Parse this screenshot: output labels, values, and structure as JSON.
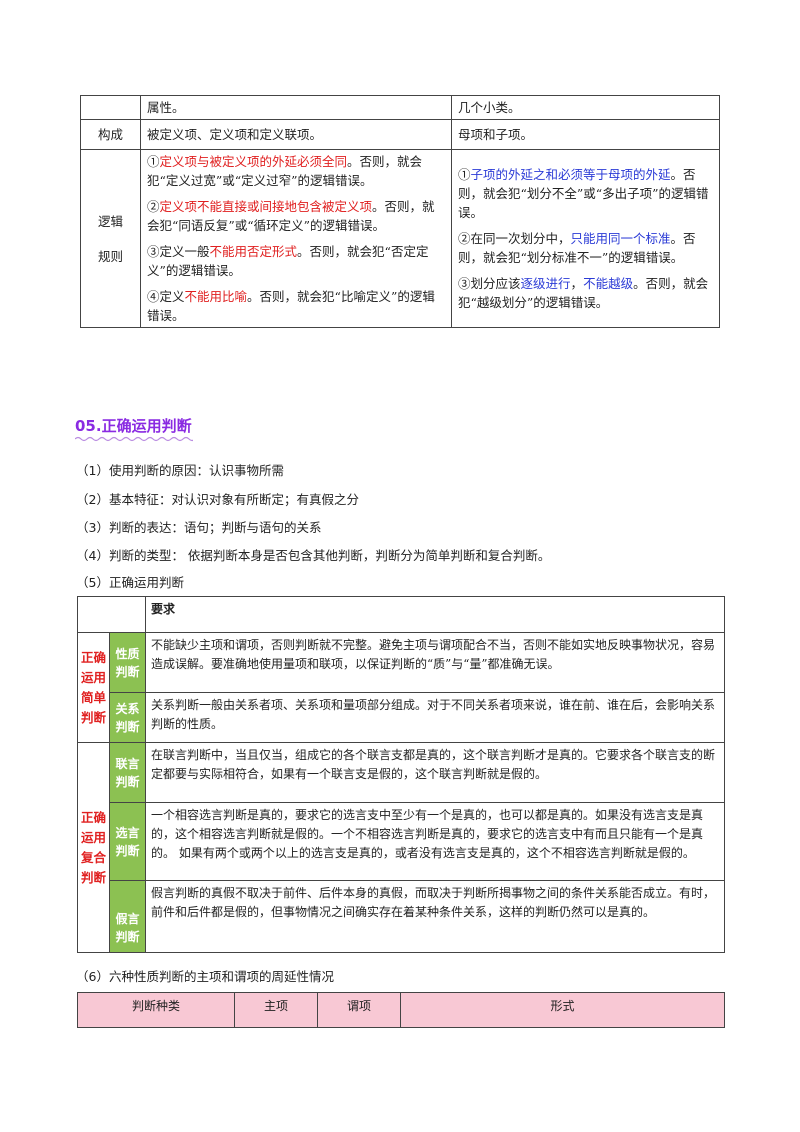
{
  "table1": {
    "row_attr": {
      "c1": "属性。",
      "c2": "几个小类。"
    },
    "row_compose": {
      "label": "构成",
      "c1": "被定义项、定义项和定义联项。",
      "c2": "母项和子项。"
    },
    "row_rules": {
      "label_line1": "逻辑",
      "label_line2": "规则",
      "def_rules": [
        {
          "num": "①",
          "em": "定义项与被定义项的外延必须全同",
          "rest": "。否则，就会犯“定义过宽”或“定义过窄”的逻辑错误。"
        },
        {
          "num": "②",
          "em": "定义项不能直接或间接地包含被定义项",
          "rest": "。否则，就会犯“同语反复”或“循环定义”的逻辑错误。"
        },
        {
          "num": "③",
          "pre": "定义一般",
          "em": "不能用否定形式",
          "rest": "。否则，就会犯“否定定义”的逻辑错误。"
        },
        {
          "num": "④",
          "pre": "定义",
          "em": "不能用比喻",
          "rest": "。否则，就会犯“比喻定义”的逻辑错误。"
        }
      ],
      "div_rules": [
        {
          "num": "①",
          "em": "子项的外延之和必须等于母项的外延",
          "rest": "。否则，就会犯“划分不全”或“多出子项”的逻辑错误。"
        },
        {
          "num": "②",
          "pre": "在同一次划分中，",
          "em": "只能用同一个标准",
          "rest": "。否则，就会犯“划分标准不一”的逻辑错误。"
        },
        {
          "num": "③",
          "pre": "划分应该",
          "em": "逐级进行",
          "mid": "，",
          "em2": "不能越级",
          "rest": "。否则，就会犯“越级划分”的逻辑错误。"
        }
      ]
    }
  },
  "heading": "05.正确运用判断",
  "paragraphs": [
    "（1）使用判断的原因：认识事物所需",
    "（2）基本特征：对认识对象有所断定；有真假之分",
    "（3）判断的表达：语句；判断与语句的关系",
    "（4）判断的类型： 依据判断本身是否包含其他判断，判断分为简单判断和复合判断。",
    "（5）正确运用判断"
  ],
  "table2": {
    "header": "要求",
    "group_simple": "正确运用简单判断",
    "group_compound": "正确运用复合判断",
    "rows": [
      {
        "label": "性质判断",
        "text": "不能缺少主项和谓项，否则判断就不完整。避免主项与谓项配合不当，否则不能如实地反映事物状况，容易造成误解。要准确地使用量项和联项，以保证判断的“质”与“量”都准确无误。"
      },
      {
        "label": "关系判断",
        "text": "关系判断一般由关系者项、关系项和量项部分组成。对于不同关系者项来说，谁在前、谁在后，会影响关系判断的性质。"
      },
      {
        "label": "联言判断",
        "text": "在联言判断中，当且仅当，组成它的各个联言支都是真的，这个联言判断才是真的。它要求各个联言支的断定都要与实际相符合，如果有一个联言支是假的，这个联言判断就是假的。"
      },
      {
        "label": "选言判断",
        "text": "一个相容选言判断是真的，要求它的选言支中至少有一个是真的，也可以都是真的。如果没有选言支是真的，这个相容选言判断就是假的。一个不相容选言判断是真的，要求它的选言支中有而且只能有一个是真的。 如果有两个或两个以上的选言支是真的，或者没有选言支是真的，这个不相容选言判断就是假的。"
      },
      {
        "label": "假言判断",
        "text": "假言判断的真假不取决于前件、后件本身的真假，而取决于判断所揭事物之间的条件关系能否成立。有时，前件和后件都是假的，但事物情况之间确实存在着某种条件关系，这样的判断仍然可以是真的。"
      }
    ]
  },
  "para6": "（6）六种性质判断的主项和谓项的周延性情况",
  "table3": {
    "headers": [
      "判断种类",
      "主项",
      "谓项",
      "形式"
    ]
  },
  "colors": {
    "red": "#e02020",
    "blue": "#2b3bd6",
    "heading": "#8a2be2",
    "green": "#8cc152",
    "pink": "#f8c8d4"
  }
}
